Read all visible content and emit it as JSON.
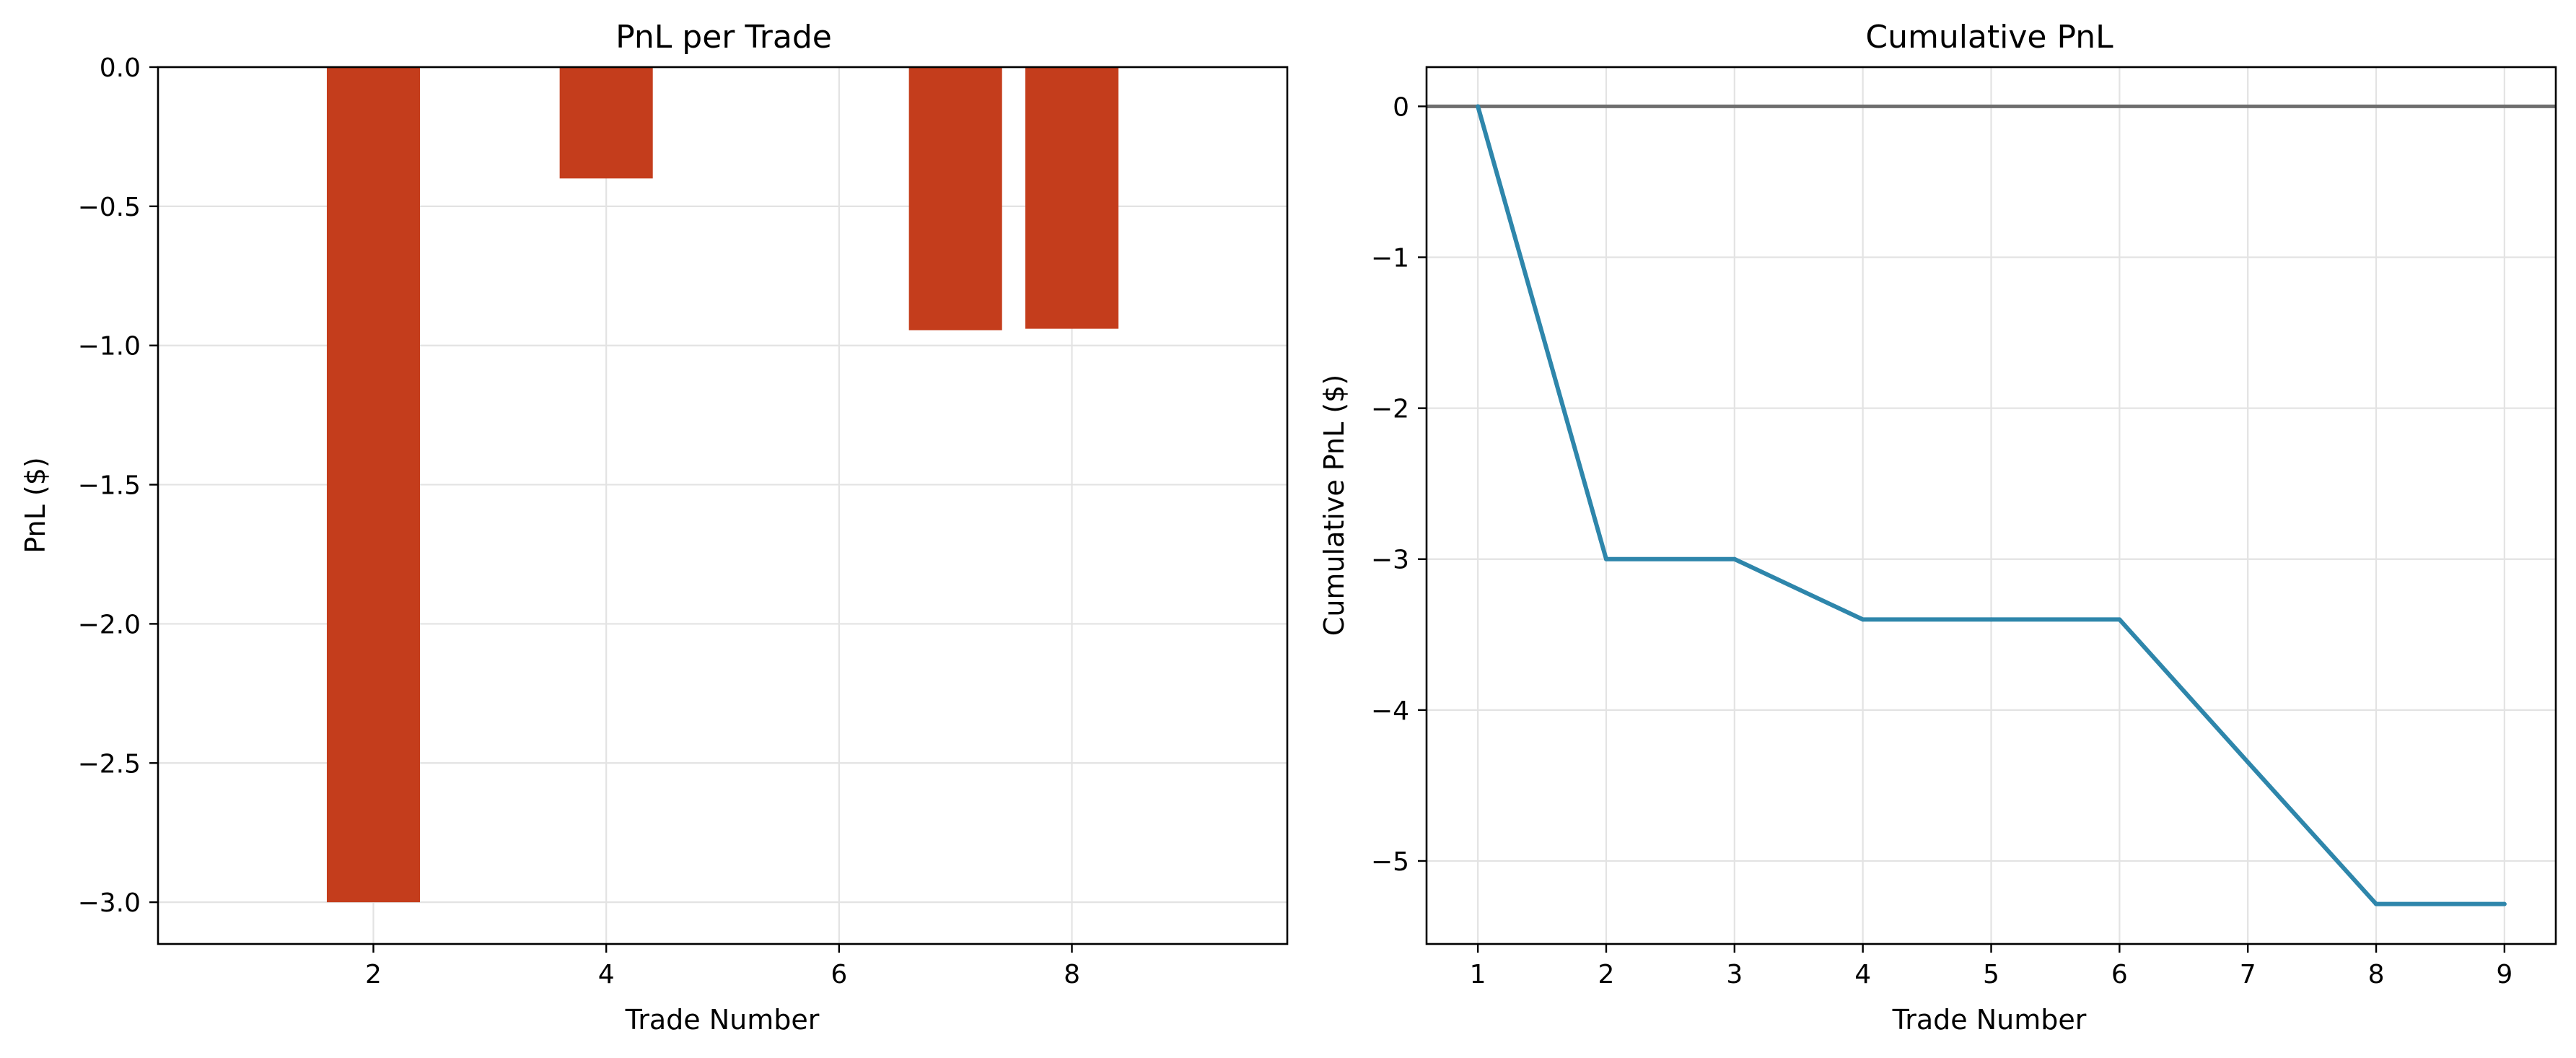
{
  "chart_data": [
    {
      "type": "bar",
      "title": "PnL per Trade",
      "xlabel": "Trade Number",
      "ylabel": "PnL ($)",
      "x": [
        2,
        4,
        7,
        8
      ],
      "values": [
        -3.0,
        -0.4,
        -0.945,
        -0.94
      ],
      "xlim": [
        0.15,
        9.85
      ],
      "ylim": [
        -3.15,
        0.0
      ],
      "xticks": [
        2,
        4,
        6,
        8
      ],
      "xtick_labels": [
        "2",
        "4",
        "6",
        "8"
      ],
      "yticks": [
        0.0,
        -0.5,
        -1.0,
        -1.5,
        -2.0,
        -2.5,
        -3.0
      ],
      "ytick_labels": [
        "0.0",
        "−0.5",
        "−1.0",
        "−1.5",
        "−2.0",
        "−2.5",
        "−3.0"
      ],
      "grid": true,
      "color": "#c43d1c"
    },
    {
      "type": "line",
      "title": "Cumulative PnL",
      "xlabel": "Trade Number",
      "ylabel": "Cumulative PnL ($)",
      "x": [
        1,
        2,
        3,
        4,
        5,
        6,
        7,
        8,
        9
      ],
      "values": [
        0,
        -3.0,
        -3.0,
        -3.4,
        -3.4,
        -3.4,
        -4.345,
        -5.285,
        -5.285
      ],
      "xlim": [
        0.6,
        9.4
      ],
      "ylim": [
        -5.55,
        0.26
      ],
      "xticks": [
        1,
        2,
        3,
        4,
        5,
        6,
        7,
        8,
        9
      ],
      "xtick_labels": [
        "1",
        "2",
        "3",
        "4",
        "5",
        "6",
        "7",
        "8",
        "9"
      ],
      "yticks": [
        0,
        -1,
        -2,
        -3,
        -4,
        -5
      ],
      "ytick_labels": [
        "0",
        "−1",
        "−2",
        "−3",
        "−4",
        "−5"
      ],
      "reference_line": 0,
      "grid": true,
      "color": "#2e86ab",
      "reference_color": "#6e6e6e"
    }
  ]
}
